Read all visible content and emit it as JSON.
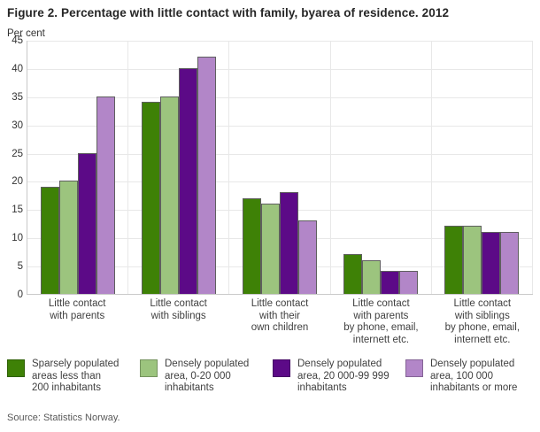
{
  "title": "Figure 2. Percentage with little contact with family, byarea of residence. 2012",
  "source": "Source: Statistics Norway.",
  "chart_data": {
    "type": "bar",
    "title": "Figure 2. Percentage with little contact with family, byarea of residence. 2012",
    "xlabel": "",
    "ylabel": "Per cent",
    "ylim": [
      0,
      45
    ],
    "yticks": [
      0,
      5,
      10,
      15,
      20,
      25,
      30,
      35,
      40,
      45
    ],
    "grid": true,
    "legend_position": "bottom",
    "categories": [
      "Little contact\nwith parents",
      "Little contact\nwith siblings",
      "Little contact\nwith their\nown children",
      "Little contact\nwith parents\nby phone, email,\ninternett etc.",
      "Little contact\nwith siblings\nby phone, email,\ninternett etc."
    ],
    "series": [
      {
        "name": "Sparsely populated\nareas less than\n200 inhabitants",
        "color": "#3e8106",
        "values": [
          19,
          34,
          17,
          7,
          12
        ]
      },
      {
        "name": "Densely populated\narea, 0-20 000\ninhabitants",
        "color": "#9cc47e",
        "values": [
          20,
          35,
          16,
          6,
          12
        ]
      },
      {
        "name": "Densely populated\narea, 20 000-99 999\ninhabitants",
        "color": "#5c0a87",
        "values": [
          25,
          40,
          18,
          4,
          11
        ]
      },
      {
        "name": "Densely populated\narea, 100 000\ninhabitants or more",
        "color": "#b286c8",
        "values": [
          35,
          42,
          13,
          4,
          11
        ]
      }
    ]
  }
}
